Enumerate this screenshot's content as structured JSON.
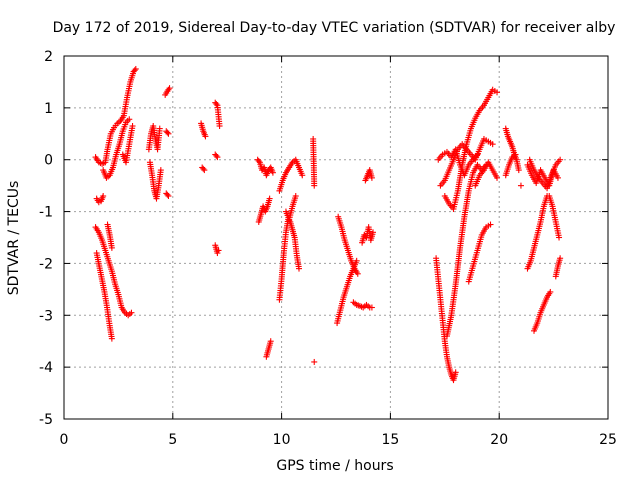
{
  "chart_data": {
    "type": "scatter",
    "title": "Day 172 of 2019, Sidereal Day-to-day VTEC variation (SDTVAR) for receiver alby",
    "xlabel": "GPS time / hours",
    "ylabel": "SDTVAR / TECUs",
    "xlim": [
      0,
      25
    ],
    "ylim": [
      -5,
      2
    ],
    "grid": true,
    "marker": "+",
    "color": "#ff0000",
    "xticks": [
      0,
      5,
      10,
      15,
      20,
      25
    ],
    "yticks": [
      -5,
      -4,
      -3,
      -2,
      -1,
      0,
      1,
      2
    ],
    "segments": [
      {
        "x": [
          1.45,
          1.6,
          1.75,
          1.9,
          2.0,
          2.15,
          2.3,
          2.45,
          2.6,
          2.75,
          2.9,
          3.05,
          3.2,
          3.3
        ],
        "y": [
          0.05,
          -0.05,
          -0.08,
          -0.05,
          0.2,
          0.5,
          0.62,
          0.7,
          0.75,
          0.85,
          1.2,
          1.5,
          1.7,
          1.75
        ]
      },
      {
        "x": [
          1.5,
          1.6,
          1.7,
          1.8
        ],
        "y": [
          -0.75,
          -0.82,
          -0.8,
          -0.7
        ]
      },
      {
        "x": [
          1.8,
          1.95,
          2.1,
          2.25,
          2.4,
          2.55,
          2.7,
          2.85,
          3.0
        ],
        "y": [
          -0.2,
          -0.35,
          -0.3,
          -0.15,
          0.1,
          0.3,
          0.55,
          0.72,
          0.78
        ]
      },
      {
        "x": [
          2.7,
          2.85,
          3.0,
          3.15
        ],
        "y": [
          0.1,
          -0.05,
          0.3,
          0.65
        ]
      },
      {
        "x": [
          1.45,
          1.6,
          1.75,
          1.9,
          2.05,
          2.2,
          2.35,
          2.5,
          2.65,
          2.8,
          2.95,
          3.1
        ],
        "y": [
          -1.3,
          -1.4,
          -1.55,
          -1.75,
          -1.95,
          -2.15,
          -2.4,
          -2.6,
          -2.85,
          -2.95,
          -3.0,
          -2.95
        ]
      },
      {
        "x": [
          1.5,
          1.62,
          1.74,
          1.86,
          1.98,
          2.1,
          2.2
        ],
        "y": [
          -1.8,
          -2.05,
          -2.3,
          -2.55,
          -2.85,
          -3.2,
          -3.45
        ]
      },
      {
        "x": [
          2.0,
          2.1,
          2.2
        ],
        "y": [
          -1.25,
          -1.45,
          -1.7
        ]
      },
      {
        "x": [
          3.9,
          4.0,
          4.1,
          4.2,
          4.3,
          4.4
        ],
        "y": [
          0.2,
          0.5,
          0.65,
          0.4,
          0.2,
          0.6
        ]
      },
      {
        "x": [
          3.95,
          4.05,
          4.15,
          4.25,
          4.35,
          4.45
        ],
        "y": [
          -0.05,
          -0.3,
          -0.6,
          -0.75,
          -0.5,
          -0.2
        ]
      },
      {
        "x": [
          4.65,
          4.75,
          4.85
        ],
        "y": [
          1.25,
          1.32,
          1.38
        ]
      },
      {
        "x": [
          4.7,
          4.8
        ],
        "y": [
          0.55,
          0.5
        ]
      },
      {
        "x": [
          4.7,
          4.8
        ],
        "y": [
          -0.65,
          -0.7
        ]
      },
      {
        "x": [
          6.3,
          6.4,
          6.5
        ],
        "y": [
          0.7,
          0.55,
          0.45
        ]
      },
      {
        "x": [
          6.35,
          6.45
        ],
        "y": [
          -0.15,
          -0.2
        ]
      },
      {
        "x": [
          6.95,
          7.05,
          7.15
        ],
        "y": [
          1.1,
          1.05,
          0.65
        ]
      },
      {
        "x": [
          6.95,
          7.05
        ],
        "y": [
          0.1,
          0.05
        ]
      },
      {
        "x": [
          6.95,
          7.05,
          7.1
        ],
        "y": [
          -1.65,
          -1.8,
          -1.75
        ]
      },
      {
        "x": [
          8.9,
          9.0,
          9.1,
          9.2,
          9.3,
          9.4,
          9.5,
          9.6
        ],
        "y": [
          0.0,
          -0.05,
          -0.2,
          -0.15,
          -0.3,
          -0.2,
          -0.15,
          -0.25
        ]
      },
      {
        "x": [
          8.95,
          9.05,
          9.15,
          9.25,
          9.35,
          9.45
        ],
        "y": [
          -1.2,
          -1.05,
          -0.9,
          -1.0,
          -0.9,
          -0.75
        ]
      },
      {
        "x": [
          9.3,
          9.4,
          9.5
        ],
        "y": [
          -3.8,
          -3.65,
          -3.5
        ]
      },
      {
        "x": [
          9.9,
          10.05,
          10.2,
          10.35,
          10.5,
          10.65,
          10.8,
          10.95
        ],
        "y": [
          -0.6,
          -0.4,
          -0.25,
          -0.15,
          -0.05,
          0.0,
          -0.15,
          -0.3
        ]
      },
      {
        "x": [
          9.9,
          10.0,
          10.1,
          10.2,
          10.3,
          10.4,
          10.5,
          10.6,
          10.7,
          10.8
        ],
        "y": [
          -2.7,
          -2.3,
          -1.8,
          -1.4,
          -1.15,
          -1.2,
          -1.35,
          -1.5,
          -1.85,
          -2.1
        ]
      },
      {
        "x": [
          10.2,
          10.35,
          10.5,
          10.65
        ],
        "y": [
          -1.0,
          -1.15,
          -0.9,
          -0.7
        ]
      },
      {
        "x": [
          11.45,
          11.5
        ],
        "y": [
          0.4,
          -0.5
        ]
      },
      {
        "x": [
          11.5
        ],
        "y": [
          -3.9
        ]
      },
      {
        "x": [
          12.55,
          12.7,
          12.85,
          13.0,
          13.15,
          13.3,
          13.45
        ],
        "y": [
          -3.15,
          -2.9,
          -2.65,
          -2.45,
          -2.25,
          -2.1,
          -1.95
        ]
      },
      {
        "x": [
          12.6,
          12.75,
          12.9,
          13.05,
          13.2,
          13.35,
          13.5
        ],
        "y": [
          -1.1,
          -1.3,
          -1.55,
          -1.75,
          -1.95,
          -2.1,
          -2.2
        ]
      },
      {
        "x": [
          13.3,
          13.45,
          13.6,
          13.75,
          13.9,
          14.05,
          14.15
        ],
        "y": [
          -2.75,
          -2.8,
          -2.82,
          -2.85,
          -2.8,
          -2.85,
          -2.85
        ]
      },
      {
        "x": [
          13.7,
          13.8,
          13.9,
          14.0,
          14.1,
          14.2
        ],
        "y": [
          -1.6,
          -1.45,
          -1.5,
          -1.3,
          -1.55,
          -1.4
        ]
      },
      {
        "x": [
          13.85,
          13.95,
          14.05,
          14.15
        ],
        "y": [
          -0.4,
          -0.3,
          -0.2,
          -0.35
        ]
      },
      {
        "x": [
          17.1,
          17.2,
          17.3,
          17.4,
          17.5,
          17.6,
          17.7,
          17.8,
          17.9,
          18.0
        ],
        "y": [
          -1.9,
          -2.3,
          -2.7,
          -3.1,
          -3.5,
          -3.8,
          -4.0,
          -4.15,
          -4.25,
          -4.1
        ]
      },
      {
        "x": [
          17.5,
          17.7,
          17.9,
          18.1,
          18.3,
          18.5,
          18.7,
          18.9,
          19.1,
          19.3,
          19.5,
          19.7,
          19.9
        ],
        "y": [
          -0.7,
          -0.85,
          -0.95,
          -0.6,
          -0.1,
          0.3,
          0.6,
          0.8,
          0.95,
          1.05,
          1.2,
          1.35,
          1.3
        ]
      },
      {
        "x": [
          17.2,
          17.4,
          17.6,
          17.8,
          18.0,
          18.2,
          18.4,
          18.6,
          18.8,
          19.0
        ],
        "y": [
          0.0,
          0.1,
          0.15,
          0.05,
          0.2,
          -0.1,
          -0.3,
          -0.1,
          0.0,
          0.1
        ]
      },
      {
        "x": [
          17.3,
          17.5,
          17.7,
          17.9,
          18.1,
          18.3,
          18.5,
          18.7,
          18.9,
          19.1,
          19.3,
          19.5,
          19.7
        ],
        "y": [
          -0.5,
          -0.4,
          -0.2,
          0.0,
          0.2,
          0.3,
          0.2,
          0.1,
          0.0,
          0.2,
          0.4,
          0.35,
          0.3
        ]
      },
      {
        "x": [
          17.6,
          17.8,
          18.0,
          18.2,
          18.4,
          18.6,
          18.8,
          19.0,
          19.2,
          19.4
        ],
        "y": [
          -3.4,
          -3.0,
          -2.4,
          -1.7,
          -1.1,
          -0.6,
          -0.25,
          -0.1,
          -0.2,
          -0.1
        ]
      },
      {
        "x": [
          18.6,
          18.8,
          19.0,
          19.2,
          19.4,
          19.6
        ],
        "y": [
          -2.35,
          -2.05,
          -1.75,
          -1.45,
          -1.3,
          -1.25
        ]
      },
      {
        "x": [
          18.9,
          19.1,
          19.3,
          19.5,
          19.7,
          19.9
        ],
        "y": [
          -0.5,
          -0.3,
          -0.2,
          -0.05,
          -0.2,
          -0.35
        ]
      },
      {
        "x": [
          20.3,
          20.4,
          20.5,
          20.6,
          20.7,
          20.8,
          20.9
        ],
        "y": [
          0.6,
          0.45,
          0.35,
          0.25,
          0.1,
          0.0,
          -0.2
        ]
      },
      {
        "x": [
          20.3,
          20.45,
          20.6,
          20.75
        ],
        "y": [
          -0.3,
          -0.1,
          0.05,
          0.1
        ]
      },
      {
        "x": [
          21.3,
          21.5,
          21.7,
          21.9,
          22.1,
          22.3,
          22.5,
          22.7
        ],
        "y": [
          -0.1,
          -0.3,
          -0.45,
          -0.2,
          -0.35,
          -0.5,
          -0.2,
          -0.35
        ]
      },
      {
        "x": [
          21.4,
          21.6,
          21.8,
          22.0,
          22.2,
          22.4,
          22.6,
          22.8
        ],
        "y": [
          0.0,
          -0.2,
          -0.35,
          -0.45,
          -0.55,
          -0.3,
          -0.1,
          0.0
        ]
      },
      {
        "x": [
          21.3,
          21.45,
          21.6,
          21.75,
          21.9,
          22.05,
          22.2
        ],
        "y": [
          -2.1,
          -1.95,
          -1.7,
          -1.45,
          -1.2,
          -0.9,
          -0.7
        ]
      },
      {
        "x": [
          21.6,
          21.75,
          21.9,
          22.05,
          22.2,
          22.35
        ],
        "y": [
          -3.3,
          -3.15,
          -2.95,
          -2.8,
          -2.65,
          -2.55
        ]
      },
      {
        "x": [
          22.6,
          22.7,
          22.8
        ],
        "y": [
          -2.25,
          -2.05,
          -1.9
        ]
      },
      {
        "x": [
          22.3,
          22.45,
          22.6,
          22.75
        ],
        "y": [
          -0.7,
          -0.9,
          -1.2,
          -1.5
        ]
      },
      {
        "x": [
          21.0
        ],
        "y": [
          -0.5
        ]
      }
    ]
  }
}
